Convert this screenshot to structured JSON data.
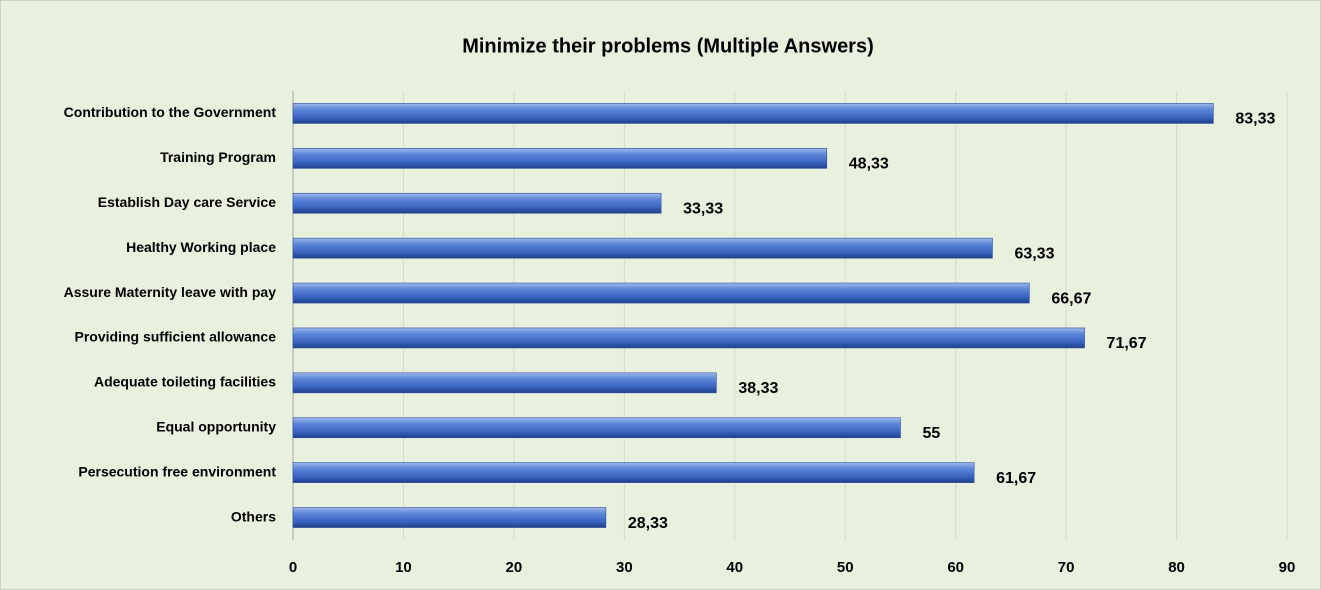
{
  "chart_data": {
    "type": "bar",
    "orientation": "horizontal",
    "title": "Minimize their problems (Multiple Answers)",
    "categories": [
      "Contribution to the Government",
      "Training Program",
      "Establish Day care Service",
      "Healthy Working place",
      "Assure Maternity leave with pay",
      "Providing sufficient allowance",
      "Adequate toileting facilities",
      "Equal opportunity",
      "Persecution free environment",
      "Others"
    ],
    "values": [
      83.33,
      48.33,
      33.33,
      63.33,
      66.67,
      71.67,
      38.33,
      55,
      61.67,
      28.33
    ],
    "value_labels": [
      "83,33",
      "48,33",
      "33,33",
      "63,33",
      "66,67",
      "71,67",
      "38,33",
      "55",
      "61,67",
      "28,33"
    ],
    "color": "#4472c4",
    "xlim": [
      0,
      90
    ],
    "xticks": [
      0,
      10,
      20,
      30,
      40,
      50,
      60,
      70,
      80,
      90
    ],
    "grid": true
  }
}
